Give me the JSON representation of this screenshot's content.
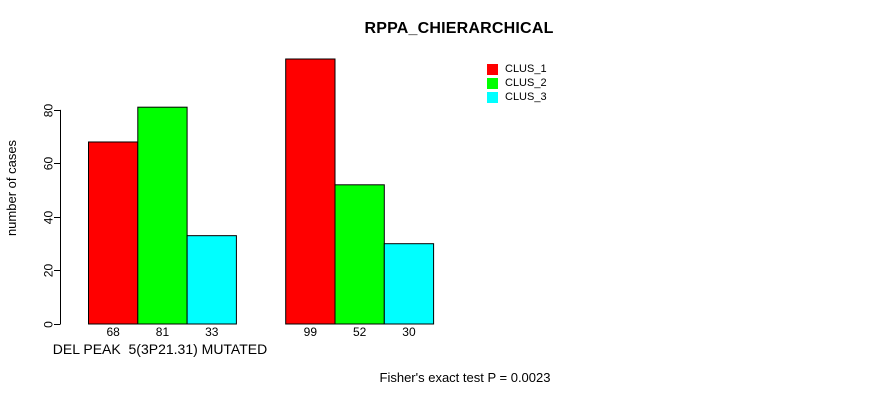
{
  "chart_data": {
    "type": "bar",
    "title": "RPPA_CHIERARCHICAL",
    "ylabel": "number of cases",
    "xlabel": "",
    "ylim": [
      0,
      99
    ],
    "yticks": [
      0,
      20,
      40,
      60,
      80
    ],
    "grid": false,
    "background": "#ffffff",
    "categories": [
      "DEL PEAK  5(3P21.31) MUTATED",
      ""
    ],
    "series": [
      {
        "name": "CLUS_1",
        "color": "#ff0000",
        "values": [
          68,
          99
        ]
      },
      {
        "name": "CLUS_2",
        "color": "#00ff00",
        "values": [
          81,
          52
        ]
      },
      {
        "name": "CLUS_3",
        "color": "#00ffff",
        "values": [
          33,
          30
        ]
      }
    ],
    "bar_value_labels": true,
    "bar_border_color": "#000000",
    "legend_position": "top-right",
    "legend_entries": [
      "CLUS_1",
      "CLUS_2",
      "CLUS_3"
    ],
    "annotation": "Fisher's exact test P = 0.0023"
  }
}
